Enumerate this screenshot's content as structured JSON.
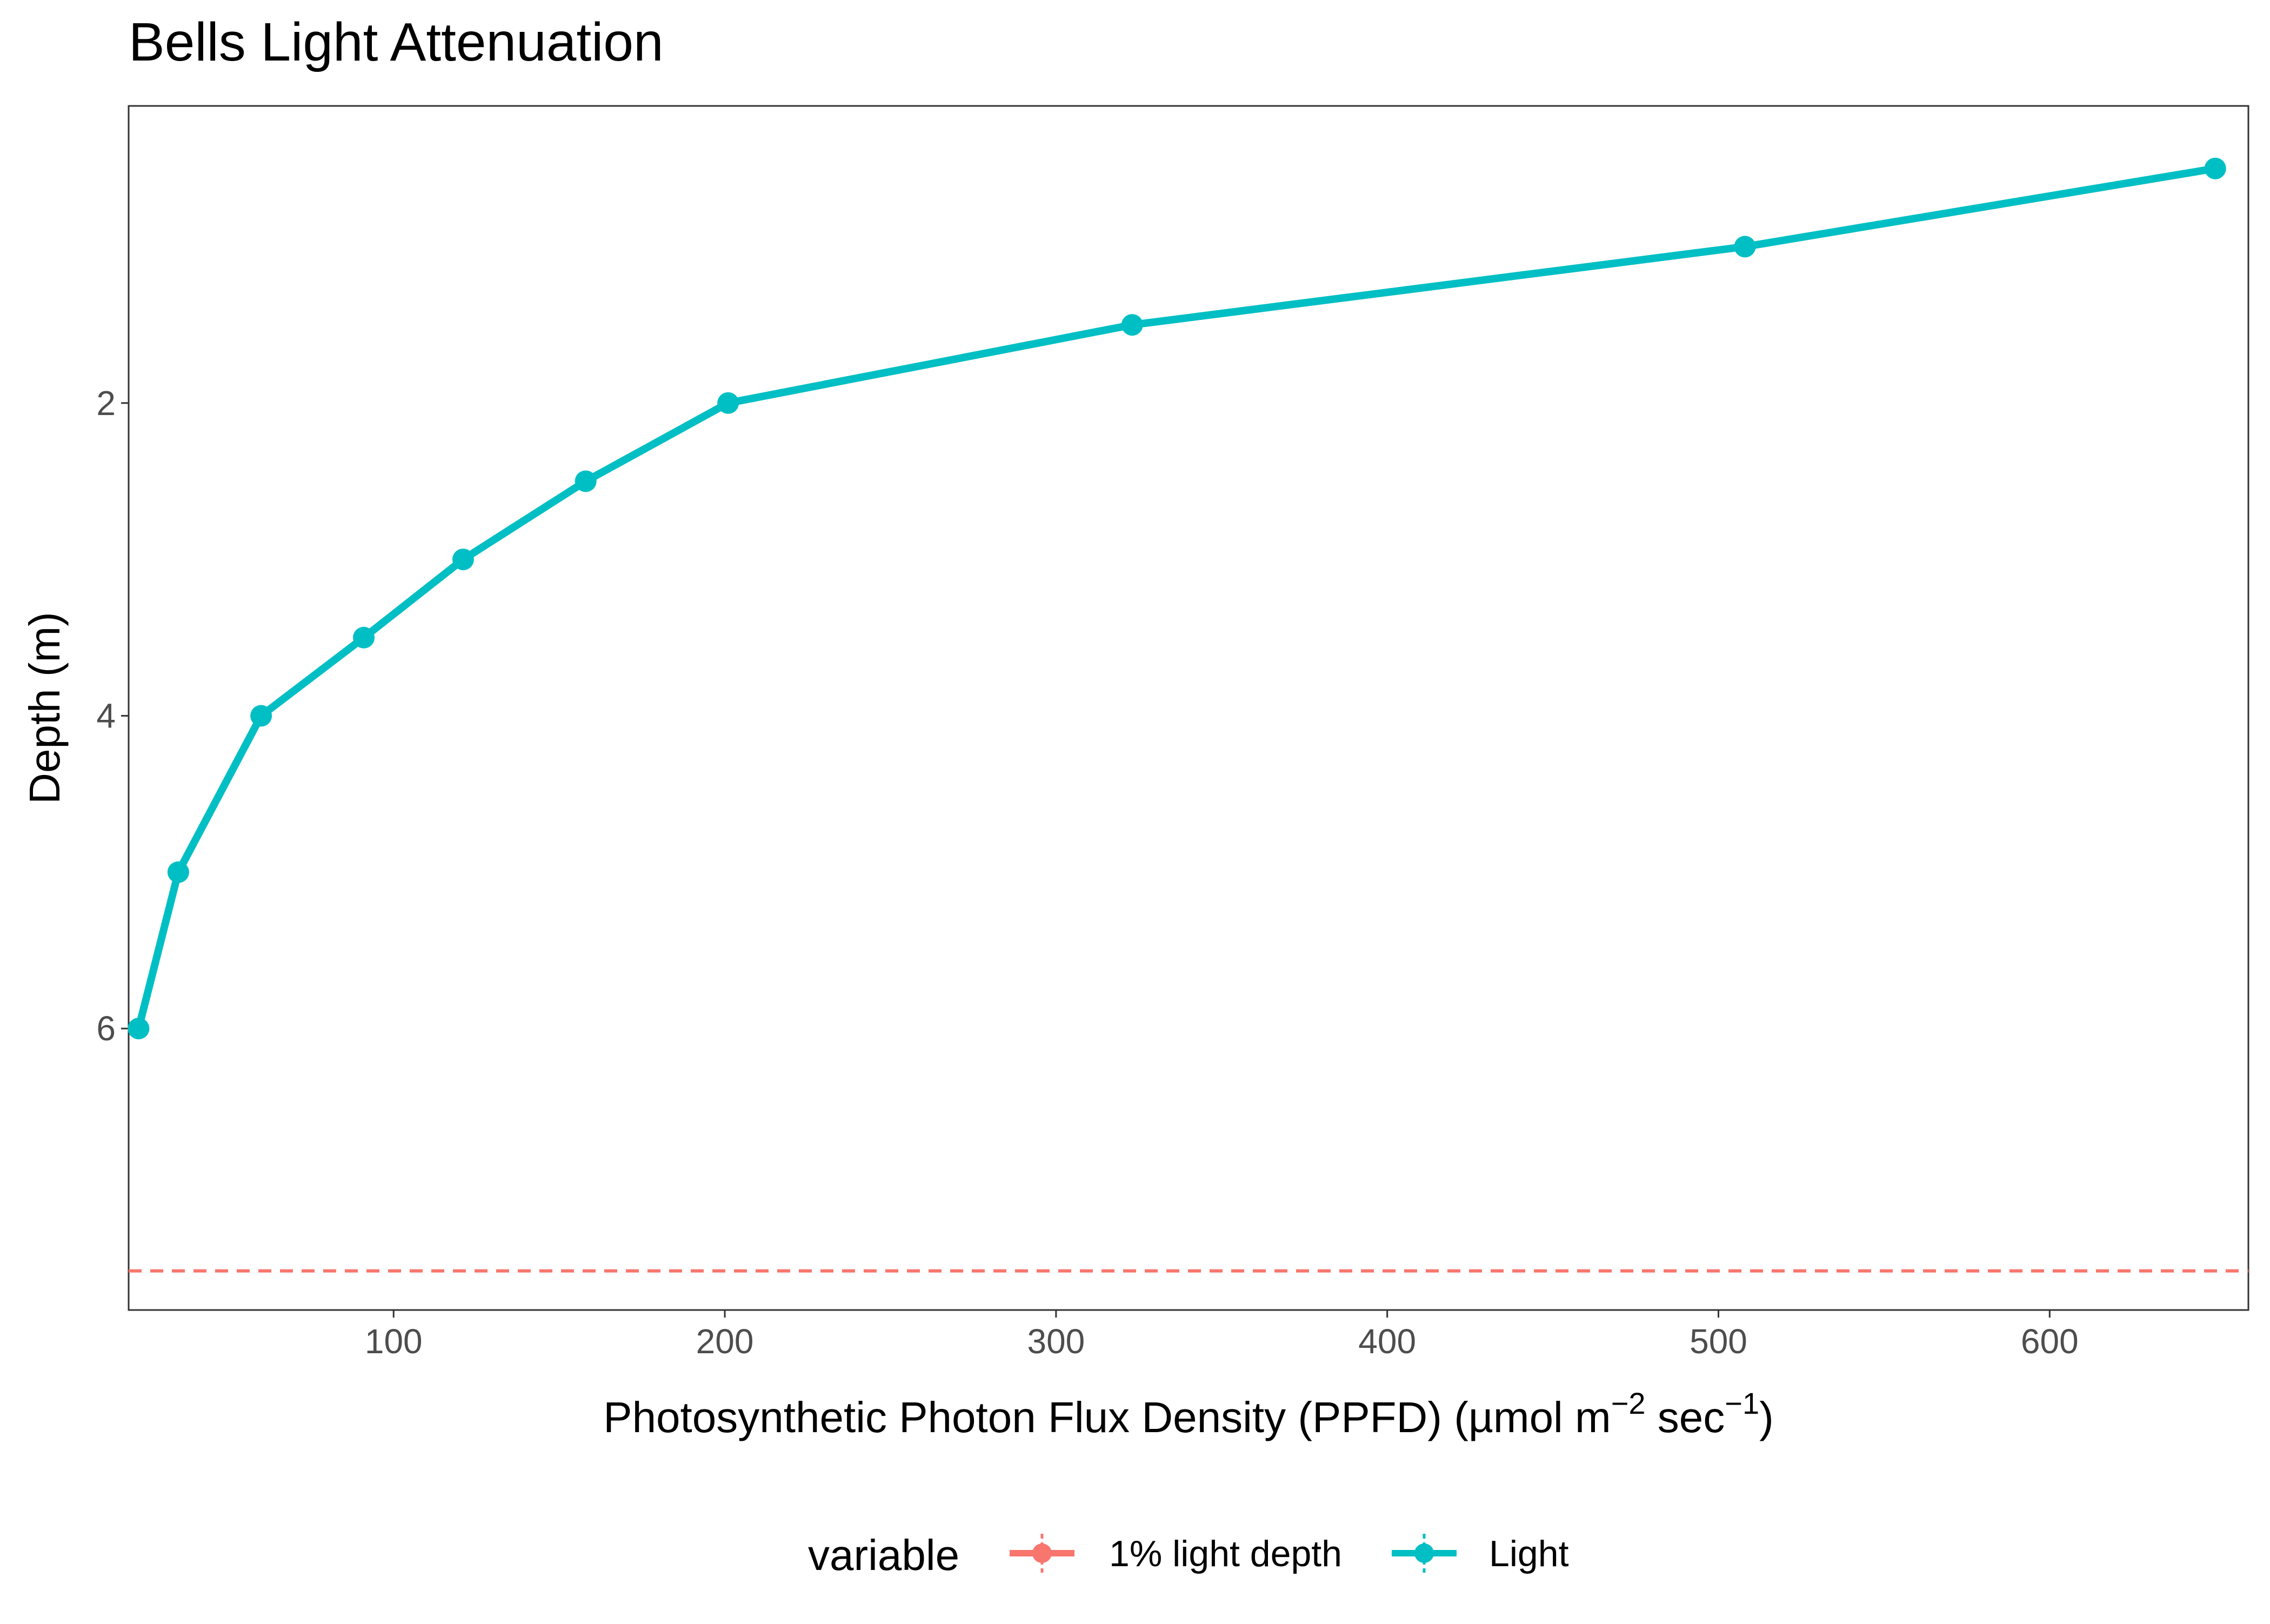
{
  "chart_data": {
    "type": "line",
    "title": "Bells Light Attenuation",
    "xlabel": {
      "base": "Photosynthetic Photon Flux Density (PPFD) (µmol m",
      "sup1": "−2",
      "mid": " sec",
      "sup2": "−1",
      "end": ")"
    },
    "ylabel": "Depth (m)",
    "xlim": [
      20,
      660
    ],
    "ylim": [
      0.1,
      7.8
    ],
    "y_reversed": true,
    "xticks": [
      100,
      200,
      300,
      400,
      500,
      600
    ],
    "yticks": [
      2,
      4,
      6
    ],
    "grid": false,
    "legend": {
      "title": "variable",
      "position": "bottom",
      "entries": [
        {
          "label": "1% light depth",
          "color": "#F8766D"
        },
        {
          "label": "Light",
          "color": "#00BFC4"
        }
      ]
    },
    "series": [
      {
        "name": "Light",
        "color": "#00BFC4",
        "style": "solid",
        "markers": true,
        "x": [
          650,
          508,
          323,
          201,
          158,
          121,
          91,
          60,
          35,
          23
        ],
        "y": [
          0.5,
          1.0,
          1.5,
          2.0,
          2.5,
          3.0,
          3.5,
          4.0,
          5.0,
          6.0
        ]
      },
      {
        "name": "1% light depth",
        "color": "#F8766D",
        "style": "dashed",
        "markers": false,
        "hline_y": 7.55
      }
    ]
  }
}
